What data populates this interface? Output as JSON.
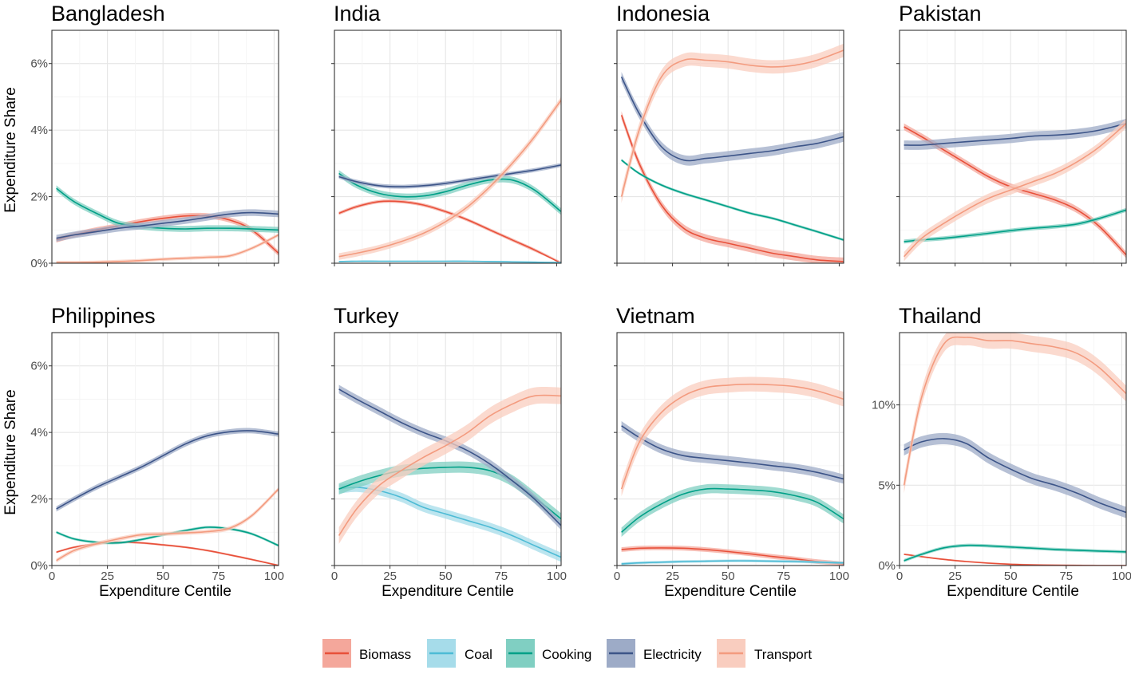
{
  "chart_data": {
    "type": "line",
    "ylabel": "Expenditure Share",
    "xlabel": "Expenditure Centile",
    "x_ticks": [
      "0",
      "25",
      "50",
      "75",
      "100"
    ],
    "series_style": [
      {
        "name": "Biomass",
        "color": "#e8503a",
        "band": "#f4a79b"
      },
      {
        "name": "Coal",
        "color": "#4dbbd5",
        "band": "#a6dcea"
      },
      {
        "name": "Cooking",
        "color": "#00a087",
        "band": "#80cfc2"
      },
      {
        "name": "Electricity",
        "color": "#3c5488",
        "band": "#9dabc7"
      },
      {
        "name": "Transport",
        "color": "#f39b7f",
        "band": "#f9cdbf"
      }
    ],
    "panels": [
      {
        "title": "Bangladesh",
        "ylim": [
          0,
          7
        ],
        "yticks": [
          0,
          2,
          4,
          6
        ],
        "ytick_labels": [
          "0%",
          "2%",
          "4%",
          "6%"
        ],
        "x": [
          2,
          10,
          20,
          30,
          40,
          50,
          60,
          70,
          80,
          90,
          102
        ],
        "series": [
          {
            "name": "Biomass",
            "values": [
              0.7,
              0.85,
              1.0,
              1.12,
              1.25,
              1.35,
              1.42,
              1.42,
              1.3,
              1.0,
              0.3
            ],
            "band": 0.08
          },
          {
            "name": "Cooking",
            "values": [
              2.25,
              1.85,
              1.5,
              1.2,
              1.1,
              1.05,
              1.03,
              1.05,
              1.05,
              1.03,
              1.0
            ],
            "band": 0.09
          },
          {
            "name": "Electricity",
            "values": [
              0.75,
              0.85,
              0.95,
              1.05,
              1.12,
              1.2,
              1.28,
              1.38,
              1.48,
              1.52,
              1.48
            ],
            "band": 0.1
          },
          {
            "name": "Transport",
            "values": [
              0.02,
              0.02,
              0.03,
              0.05,
              0.08,
              0.12,
              0.15,
              0.18,
              0.22,
              0.45,
              0.85
            ],
            "band": 0.05
          }
        ]
      },
      {
        "title": "India",
        "ylim": [
          0,
          7
        ],
        "yticks": [
          0,
          2,
          4,
          6
        ],
        "ytick_labels": [
          "",
          "",
          "",
          ""
        ],
        "x": [
          2,
          10,
          20,
          30,
          40,
          50,
          60,
          70,
          80,
          90,
          102
        ],
        "series": [
          {
            "name": "Biomass",
            "values": [
              1.5,
              1.7,
              1.85,
              1.85,
              1.75,
              1.55,
              1.3,
              1.0,
              0.7,
              0.4,
              0.0
            ],
            "band": 0.05
          },
          {
            "name": "Coal",
            "values": [
              0.05,
              0.06,
              0.06,
              0.06,
              0.06,
              0.06,
              0.06,
              0.05,
              0.04,
              0.03,
              0.02
            ],
            "band": 0.02
          },
          {
            "name": "Cooking",
            "values": [
              2.7,
              2.35,
              2.1,
              2.0,
              2.02,
              2.15,
              2.35,
              2.5,
              2.5,
              2.2,
              1.55
            ],
            "band": 0.1
          },
          {
            "name": "Electricity",
            "values": [
              2.6,
              2.45,
              2.33,
              2.3,
              2.33,
              2.4,
              2.5,
              2.6,
              2.7,
              2.8,
              2.95
            ],
            "band": 0.06
          },
          {
            "name": "Transport",
            "values": [
              0.2,
              0.3,
              0.45,
              0.65,
              0.9,
              1.25,
              1.7,
              2.3,
              3.0,
              3.8,
              4.9
            ],
            "band": 0.1
          }
        ]
      },
      {
        "title": "Indonesia",
        "ylim": [
          0,
          7
        ],
        "yticks": [
          0,
          2,
          4,
          6
        ],
        "ytick_labels": [
          "",
          "",
          "",
          ""
        ],
        "x": [
          2,
          10,
          20,
          30,
          40,
          50,
          60,
          70,
          80,
          90,
          102
        ],
        "series": [
          {
            "name": "Biomass",
            "values": [
              4.45,
              3.0,
              1.75,
              1.05,
              0.75,
              0.6,
              0.45,
              0.3,
              0.2,
              0.1,
              0.05
            ],
            "band": 0.12
          },
          {
            "name": "Cooking",
            "values": [
              3.1,
              2.7,
              2.35,
              2.1,
              1.9,
              1.7,
              1.5,
              1.35,
              1.15,
              0.95,
              0.7
            ],
            "band": 0.04
          },
          {
            "name": "Electricity",
            "values": [
              5.6,
              4.5,
              3.5,
              3.1,
              3.15,
              3.22,
              3.3,
              3.38,
              3.5,
              3.6,
              3.8
            ],
            "band": 0.15
          },
          {
            "name": "Transport",
            "values": [
              2.0,
              4.0,
              5.6,
              6.1,
              6.1,
              6.05,
              5.95,
              5.9,
              5.95,
              6.1,
              6.4
            ],
            "band": 0.2
          }
        ]
      },
      {
        "title": "Pakistan",
        "ylim": [
          0,
          7
        ],
        "yticks": [
          0,
          2,
          4,
          6
        ],
        "ytick_labels": [
          "",
          "",
          "",
          ""
        ],
        "x": [
          2,
          10,
          20,
          30,
          40,
          50,
          60,
          70,
          80,
          90,
          102
        ],
        "series": [
          {
            "name": "Biomass",
            "values": [
              4.1,
              3.8,
              3.4,
              3.0,
              2.6,
              2.3,
              2.1,
              1.9,
              1.6,
              1.1,
              0.25
            ],
            "band": 0.1
          },
          {
            "name": "Cooking",
            "values": [
              0.65,
              0.7,
              0.75,
              0.82,
              0.9,
              0.98,
              1.05,
              1.1,
              1.18,
              1.35,
              1.6
            ],
            "band": 0.06
          },
          {
            "name": "Electricity",
            "values": [
              3.55,
              3.55,
              3.6,
              3.65,
              3.7,
              3.75,
              3.82,
              3.85,
              3.9,
              4.0,
              4.2
            ],
            "band": 0.14
          },
          {
            "name": "Transport",
            "values": [
              0.2,
              0.75,
              1.2,
              1.6,
              1.95,
              2.2,
              2.45,
              2.7,
              3.05,
              3.5,
              4.2
            ],
            "band": 0.14
          }
        ]
      },
      {
        "title": "Philippines",
        "ylim": [
          0,
          7
        ],
        "yticks": [
          0,
          2,
          4,
          6
        ],
        "ytick_labels": [
          "0%",
          "2%",
          "4%",
          "6%"
        ],
        "x": [
          2,
          10,
          20,
          30,
          40,
          50,
          60,
          70,
          80,
          90,
          102
        ],
        "series": [
          {
            "name": "Biomass",
            "values": [
              0.4,
              0.55,
              0.65,
              0.7,
              0.68,
              0.62,
              0.55,
              0.45,
              0.32,
              0.18,
              0.0
            ],
            "band": 0.03
          },
          {
            "name": "Cooking",
            "values": [
              1.0,
              0.8,
              0.7,
              0.68,
              0.78,
              0.92,
              1.05,
              1.15,
              1.1,
              0.95,
              0.6
            ],
            "band": 0.04
          },
          {
            "name": "Electricity",
            "values": [
              1.7,
              2.0,
              2.35,
              2.65,
              2.95,
              3.3,
              3.65,
              3.9,
              4.02,
              4.05,
              3.95
            ],
            "band": 0.08
          },
          {
            "name": "Transport",
            "values": [
              0.15,
              0.45,
              0.65,
              0.8,
              0.92,
              0.95,
              0.98,
              1.02,
              1.12,
              1.5,
              2.3
            ],
            "band": 0.06
          }
        ]
      },
      {
        "title": "Turkey",
        "ylim": [
          0,
          7
        ],
        "yticks": [
          0,
          2,
          4,
          6
        ],
        "ytick_labels": [
          "",
          "",
          "",
          ""
        ],
        "x": [
          2,
          10,
          20,
          30,
          40,
          50,
          60,
          70,
          80,
          90,
          102
        ],
        "series": [
          {
            "name": "Coal",
            "values": [
              2.3,
              2.35,
              2.25,
              2.05,
              1.75,
              1.55,
              1.35,
              1.15,
              0.9,
              0.6,
              0.25
            ],
            "band": 0.14
          },
          {
            "name": "Cooking",
            "values": [
              2.3,
              2.5,
              2.7,
              2.85,
              2.92,
              2.95,
              2.95,
              2.85,
              2.55,
              2.05,
              1.4
            ],
            "band": 0.17
          },
          {
            "name": "Electricity",
            "values": [
              5.3,
              5.0,
              4.65,
              4.3,
              4.0,
              3.75,
              3.45,
              3.05,
              2.55,
              2.0,
              1.2
            ],
            "band": 0.13
          },
          {
            "name": "Transport",
            "values": [
              0.9,
              1.7,
              2.4,
              2.85,
              3.25,
              3.6,
              4.0,
              4.5,
              4.85,
              5.1,
              5.1
            ],
            "band": 0.25
          }
        ]
      },
      {
        "title": "Vietnam",
        "ylim": [
          0,
          7
        ],
        "yticks": [
          0,
          2,
          4,
          6
        ],
        "ytick_labels": [
          "",
          "",
          "",
          ""
        ],
        "x": [
          2,
          10,
          20,
          30,
          40,
          50,
          60,
          70,
          80,
          90,
          102
        ],
        "series": [
          {
            "name": "Biomass",
            "values": [
              0.48,
              0.52,
              0.53,
              0.52,
              0.48,
              0.42,
              0.35,
              0.27,
              0.2,
              0.12,
              0.05
            ],
            "band": 0.07
          },
          {
            "name": "Coal",
            "values": [
              0.05,
              0.08,
              0.1,
              0.12,
              0.13,
              0.14,
              0.14,
              0.13,
              0.12,
              0.1,
              0.08
            ],
            "band": 0.04
          },
          {
            "name": "Cooking",
            "values": [
              1.0,
              1.45,
              1.85,
              2.15,
              2.3,
              2.3,
              2.27,
              2.22,
              2.1,
              1.9,
              1.4
            ],
            "band": 0.14
          },
          {
            "name": "Electricity",
            "values": [
              4.2,
              3.85,
              3.5,
              3.3,
              3.22,
              3.15,
              3.08,
              3.0,
              2.92,
              2.8,
              2.6
            ],
            "band": 0.14
          },
          {
            "name": "Transport",
            "values": [
              2.3,
              3.7,
              4.6,
              5.1,
              5.35,
              5.42,
              5.45,
              5.43,
              5.38,
              5.25,
              5.0
            ],
            "band": 0.22
          }
        ]
      },
      {
        "title": "Thailand",
        "ylim": [
          0,
          14.5
        ],
        "yticks": [
          0,
          5,
          10
        ],
        "ytick_labels": [
          "0%",
          "5%",
          "10%"
        ],
        "x": [
          2,
          10,
          20,
          30,
          40,
          50,
          60,
          70,
          80,
          90,
          102
        ],
        "series": [
          {
            "name": "Biomass",
            "values": [
              0.7,
              0.55,
              0.38,
              0.25,
              0.15,
              0.08,
              0.04,
              0.02,
              0.01,
              0.0,
              0.0
            ],
            "band": 0.05
          },
          {
            "name": "Cooking",
            "values": [
              0.3,
              0.7,
              1.1,
              1.25,
              1.22,
              1.15,
              1.08,
              1.0,
              0.95,
              0.9,
              0.85
            ],
            "band": 0.1
          },
          {
            "name": "Electricity",
            "values": [
              7.2,
              7.7,
              7.9,
              7.6,
              6.7,
              6.0,
              5.4,
              5.0,
              4.5,
              3.9,
              3.3
            ],
            "band": 0.35
          },
          {
            "name": "Transport",
            "values": [
              5.0,
              10.5,
              13.8,
              14.2,
              14.0,
              14.0,
              13.8,
              13.6,
              13.2,
              12.3,
              10.7
            ],
            "band": 0.5
          }
        ]
      }
    ],
    "legend": {
      "position": "bottom",
      "items": [
        "Biomass",
        "Coal",
        "Cooking",
        "Electricity",
        "Transport"
      ]
    }
  }
}
